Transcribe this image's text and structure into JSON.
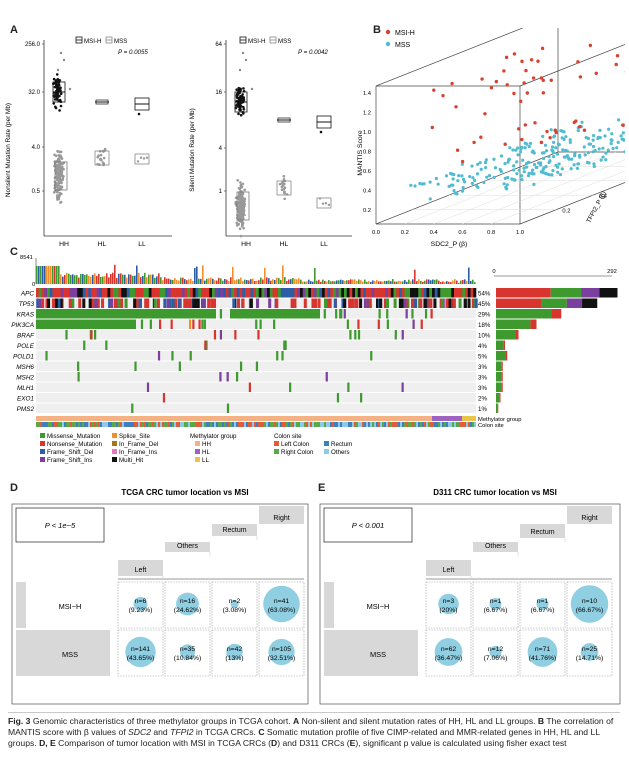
{
  "panels": {
    "A": "A",
    "B": "B",
    "C": "C",
    "D": "D",
    "E": "E"
  },
  "panelA": {
    "left": {
      "ylabel": "Nonsilent Mutation Rate (per Mb)",
      "yticks": [
        "256.0",
        "32.0",
        "4.0",
        "0.5"
      ],
      "legend": [
        "MSI-H",
        "MSS"
      ],
      "pvalue": "P = 0.0055",
      "xticks": [
        "HH",
        "HL",
        "LL"
      ]
    },
    "right": {
      "ylabel": "Silent Mutation Rate (per Mb)",
      "yticks": [
        "64",
        "16",
        "4",
        "1"
      ],
      "legend": [
        "MSI-H",
        "MSS"
      ],
      "pvalue": "P = 0.0042",
      "xticks": [
        "HH",
        "HL",
        "LL"
      ]
    }
  },
  "panelB": {
    "legend": [
      "MSI-H",
      "MSS"
    ],
    "zlabel": "MANTIS Score",
    "xlabel": "SDC2_P (β)",
    "ylabel": "TFPI2_P (β)",
    "zticks": [
      "0.2",
      "0.4",
      "0.6",
      "0.8",
      "1.0",
      "1.2",
      "1.4"
    ],
    "xticks": [
      "0.0",
      "0.2",
      "0.4",
      "0.6",
      "0.8",
      "1.0"
    ],
    "yticks": [
      "0.2",
      "0.4",
      "0.6",
      "0.8",
      "1.0"
    ],
    "colors": {
      "msih": "#d9412e",
      "mss": "#4fbccf"
    }
  },
  "panelC": {
    "top_max": "8541",
    "top_min": "0",
    "bar_max": "292",
    "bar_min": "0",
    "genes": [
      {
        "name": "APC",
        "pct": "54%"
      },
      {
        "name": "TP53",
        "pct": "45%"
      },
      {
        "name": "KRAS",
        "pct": "29%"
      },
      {
        "name": "PIK3CA",
        "pct": "18%"
      },
      {
        "name": "BRAF",
        "pct": "10%"
      },
      {
        "name": "POLE",
        "pct": "4%"
      },
      {
        "name": "POLD1",
        "pct": "5%"
      },
      {
        "name": "MSH6",
        "pct": "3%"
      },
      {
        "name": "MSH2",
        "pct": "3%"
      },
      {
        "name": "MLH1",
        "pct": "3%"
      },
      {
        "name": "EXO1",
        "pct": "2%"
      },
      {
        "name": "PMS2",
        "pct": "1%"
      }
    ],
    "track_labels": [
      "Methylator group",
      "Colon site"
    ],
    "legend_muts": [
      {
        "label": "Missense_Mutation",
        "color": "#3e9a2e"
      },
      {
        "label": "Nonsense_Mutation",
        "color": "#d8352f"
      },
      {
        "label": "Frame_Shift_Del",
        "color": "#2b5ea7"
      },
      {
        "label": "Frame_Shift_Ins",
        "color": "#7b3f9e"
      },
      {
        "label": "Splice_Site",
        "color": "#f28e2b"
      },
      {
        "label": "In_Frame_Del",
        "color": "#a6761d"
      },
      {
        "label": "In_Frame_Ins",
        "color": "#e377c2"
      },
      {
        "label": "Multi_Hit",
        "color": "#111111"
      }
    ],
    "legend_meth_title": "Methylator group",
    "legend_meth": [
      {
        "label": "HH",
        "color": "#f4b183"
      },
      {
        "label": "HL",
        "color": "#9e63c0"
      },
      {
        "label": "LL",
        "color": "#e8c44a"
      }
    ],
    "legend_site_title": "Colon site",
    "legend_site": [
      {
        "label": "Left Colon",
        "color": "#e05c3a"
      },
      {
        "label": "Rectum",
        "color": "#3f7fbf"
      },
      {
        "label": "Right Colon",
        "color": "#5aa84a"
      },
      {
        "label": "Others",
        "color": "#8fc9e8"
      }
    ]
  },
  "panelD": {
    "title": "TCGA CRC tumor location vs MSI",
    "pvalue": "P < 1e−5",
    "cols": [
      "Left",
      "Others",
      "Rectum",
      "Right"
    ],
    "rows": [
      "MSI−H",
      "MSS"
    ],
    "cells": [
      [
        {
          "n": "n=6",
          "p": "(9.23%)",
          "v": 9.23
        },
        {
          "n": "n=16",
          "p": "(24.62%)",
          "v": 24.62
        },
        {
          "n": "n=2",
          "p": "(3.08%)",
          "v": 3.08
        },
        {
          "n": "n=41",
          "p": "(63.08%)",
          "v": 63.08
        }
      ],
      [
        {
          "n": "n=141",
          "p": "(43.65%)",
          "v": 43.65
        },
        {
          "n": "n=35",
          "p": "(10.84%)",
          "v": 10.84
        },
        {
          "n": "n=42",
          "p": "(13%)",
          "v": 13
        },
        {
          "n": "n=105",
          "p": "(32.51%)",
          "v": 32.51
        }
      ]
    ]
  },
  "panelE": {
    "title": "D311 CRC tumor location vs MSI",
    "pvalue": "P < 0.001",
    "cols": [
      "Left",
      "Others",
      "Rectum",
      "Right"
    ],
    "rows": [
      "MSI−H",
      "MSS"
    ],
    "cells": [
      [
        {
          "n": "n=3",
          "p": "(20%)",
          "v": 20
        },
        {
          "n": "n=1",
          "p": "(6.67%)",
          "v": 6.67
        },
        {
          "n": "n=1",
          "p": "(6.67%)",
          "v": 6.67
        },
        {
          "n": "n=10",
          "p": "(66.67%)",
          "v": 66.67
        }
      ],
      [
        {
          "n": "n=62",
          "p": "(36.47%)",
          "v": 36.47
        },
        {
          "n": "n=12",
          "p": "(7.06%)",
          "v": 7.06
        },
        {
          "n": "n=71",
          "p": "(41.76%)",
          "v": 41.76
        },
        {
          "n": "n=25",
          "p": "(14.71%)",
          "v": 14.71
        }
      ]
    ]
  },
  "caption": {
    "fig": "Fig. 3",
    "s1": "Genomic characteristics of three methylator groups in TCGA cohort.",
    "a_letter": "A",
    "a_text": "Non-silent and silent mutation rates of HH, HL and LL groups.",
    "b_letter": "B",
    "b_text1": "The correlation of MANTIS score with β values of",
    "g1": "SDC2",
    "and1": "and",
    "g2": "TFPI2",
    "b_text2": "in TCGA CRCs.",
    "c_letter": "C",
    "c_text": "Somatic mutation profile of five CIMP-related and MMR-related genes in HH, HL and LL groups.",
    "de_letter": "D, E",
    "de_text1": "Comparison of tumor location with MSI in TCGA CRCs (",
    "d_in": "D",
    "de_text2": ") and D311 CRCs (",
    "e_in": "E",
    "de_text3": "), significant p value is calculated using fisher exact test"
  }
}
